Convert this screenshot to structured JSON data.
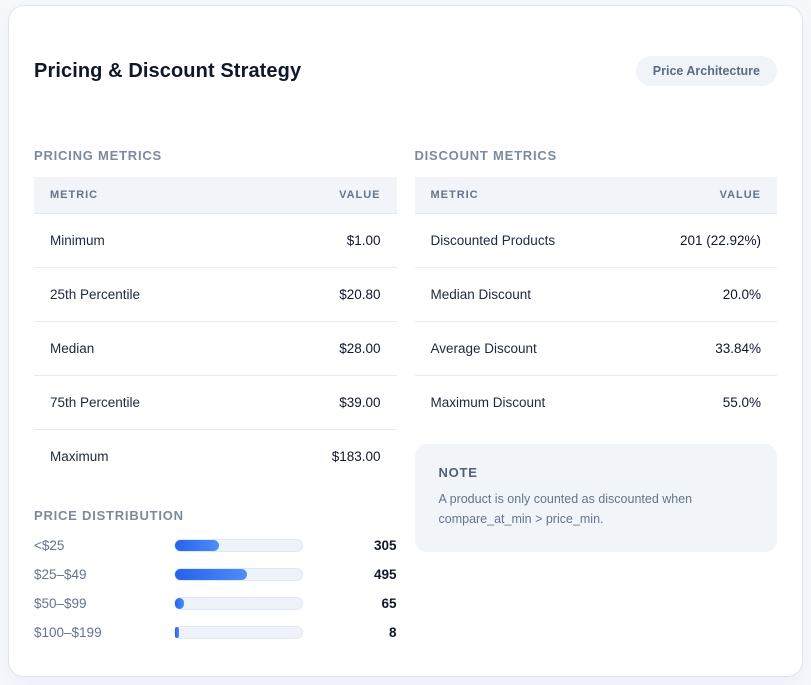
{
  "header": {
    "title": "Pricing & Discount Strategy",
    "badge": "Price Architecture"
  },
  "pricing_metrics": {
    "section_title": "PRICING METRICS",
    "columns": {
      "metric": "METRIC",
      "value": "VALUE"
    },
    "rows": [
      {
        "metric": "Minimum",
        "value": "$1.00"
      },
      {
        "metric": "25th Percentile",
        "value": "$20.80"
      },
      {
        "metric": "Median",
        "value": "$28.00"
      },
      {
        "metric": "75th Percentile",
        "value": "$39.00"
      },
      {
        "metric": "Maximum",
        "value": "$183.00"
      }
    ]
  },
  "discount_metrics": {
    "section_title": "DISCOUNT METRICS",
    "columns": {
      "metric": "METRIC",
      "value": "VALUE"
    },
    "rows": [
      {
        "metric": "Discounted Products",
        "value": "201 (22.92%)"
      },
      {
        "metric": "Median Discount",
        "value": "20.0%"
      },
      {
        "metric": "Average Discount",
        "value": "33.84%"
      },
      {
        "metric": "Maximum Discount",
        "value": "55.0%"
      }
    ]
  },
  "price_distribution": {
    "section_title": "PRICE DISTRIBUTION",
    "bars": [
      {
        "label": "<$25",
        "count": 305
      },
      {
        "label": "$25–$49",
        "count": 495
      },
      {
        "label": "$50–$99",
        "count": 65
      },
      {
        "label": "$100–$199",
        "count": 8
      }
    ]
  },
  "note": {
    "title": "NOTE",
    "text": "A product is only counted as discounted when compare_at_min > price_min."
  },
  "chart_data": {
    "type": "bar",
    "title": "PRICE DISTRIBUTION",
    "categories": [
      "<$25",
      "$25–$49",
      "$50–$99",
      "$100–$199"
    ],
    "values": [
      305,
      495,
      65,
      8
    ],
    "xlabel": "",
    "ylabel": "",
    "orientation": "horizontal",
    "bar_color_gradient": [
      "#2463ea",
      "#4f8df6"
    ]
  },
  "colors": {
    "accent_blue_start": "#2463ea",
    "accent_blue_end": "#4f8df6",
    "card_background": "#ffffff",
    "page_background": "#f6f8fc",
    "muted_background": "#f1f5f9",
    "muted_text": "#64748b",
    "dark_text": "#0f172a"
  }
}
